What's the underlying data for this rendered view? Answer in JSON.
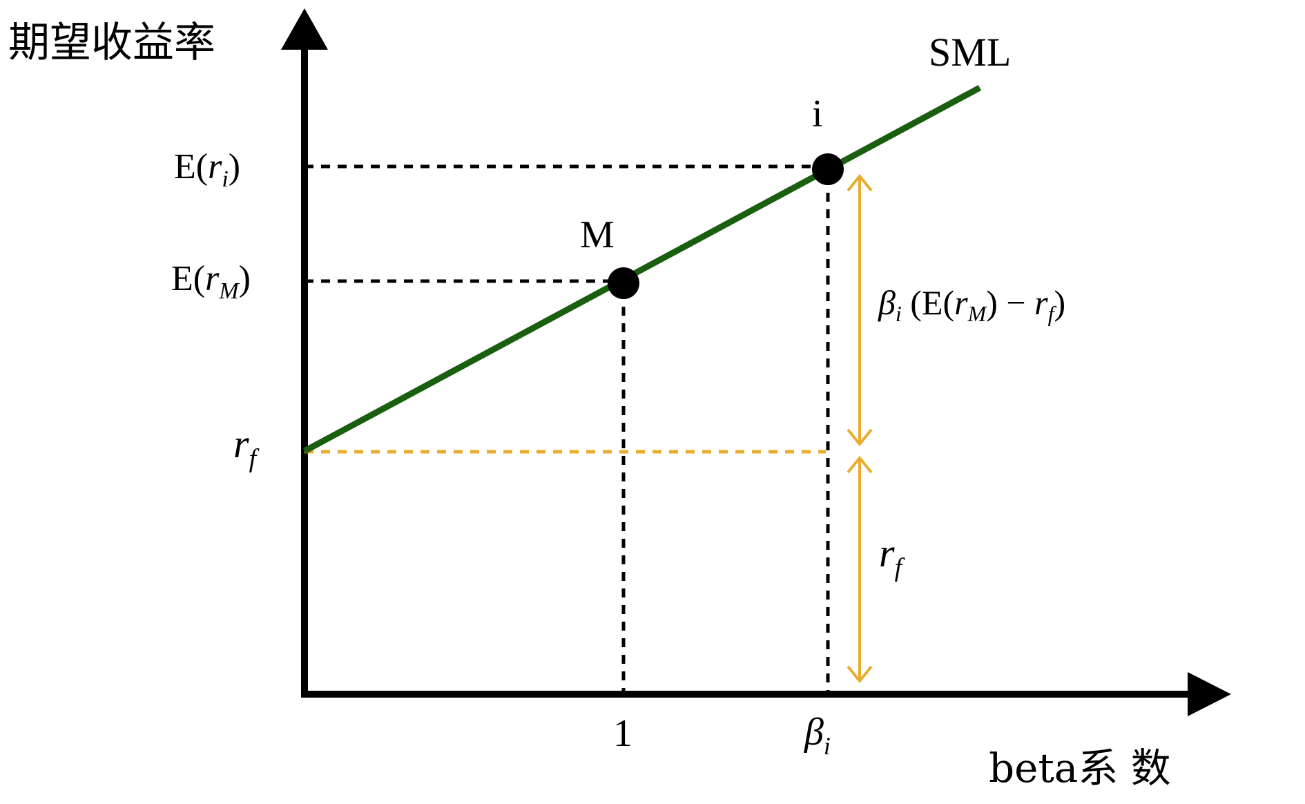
{
  "diagram": {
    "y_axis_label": "期望收益率",
    "x_axis_label": "beta系 数",
    "line_label": "SML",
    "point_m_label": "M",
    "point_i_label": "i",
    "y_tick_eri": {
      "prefix": "E(",
      "var": "r",
      "sub": "i",
      "suffix": ")"
    },
    "y_tick_erm": {
      "prefix": "E(",
      "var": "r",
      "sub": "M",
      "suffix": ")"
    },
    "y_tick_rf": {
      "var": "r",
      "sub": "f"
    },
    "x_tick_1": "1",
    "x_tick_beta_i": {
      "var": "β",
      "sub": "i"
    },
    "brace_upper": {
      "beta": "β",
      "beta_sub": "i",
      "open": " (E(",
      "var": "r",
      "var_sub": "M",
      "mid": ") − ",
      "rf": "r",
      "rf_sub": "f",
      "close": ")"
    },
    "brace_lower": {
      "var": "r",
      "sub": "f"
    },
    "colors": {
      "axis": "#000000",
      "sml_line": "#1a5e10",
      "rf_guide": "#e8ac30",
      "brace_arrow": "#e8ac30",
      "guides": "#000000",
      "points": "#000000"
    },
    "icons": {
      "x_axis_arrow": "arrowhead-right-icon",
      "y_axis_arrow": "arrowhead-up-icon"
    }
  }
}
